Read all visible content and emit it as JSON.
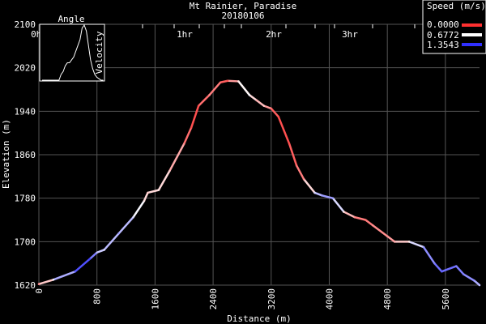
{
  "chart_data": {
    "type": "line",
    "title": "Mt Rainier, Paradise",
    "subtitle": "20180106",
    "xlabel": "Distance (m)",
    "ylabel": "Elevation (m)",
    "xlim": [
      0,
      6070
    ],
    "ylim": [
      1620,
      2100
    ],
    "xticks": [
      "0",
      "800",
      "1600",
      "2400",
      "3200",
      "4000",
      "4800",
      "5600"
    ],
    "yticks": [
      "1620",
      "1700",
      "1780",
      "1860",
      "1940",
      "2020",
      "2100"
    ],
    "time_ticks": [
      "0hr",
      "1hr",
      "2hr",
      "3hr"
    ],
    "legend": {
      "title": "Speed (m/s)",
      "placement": "top-right",
      "entries": [
        {
          "label": "0.0000",
          "color": "#ff3030"
        },
        {
          "label": "0.6772",
          "color": "#ffffff"
        },
        {
          "label": "1.3543",
          "color": "#3030ff"
        }
      ]
    },
    "inset": {
      "title": "Angle",
      "ylabel": "Velocity",
      "values": [
        0,
        0,
        0,
        0,
        0,
        0,
        0,
        0,
        0,
        2,
        3,
        5,
        6,
        6,
        7,
        8,
        10,
        12,
        14,
        18,
        19,
        17,
        12,
        7,
        4,
        2,
        1,
        0.5,
        0,
        0
      ]
    },
    "series": [
      {
        "name": "profile",
        "points": [
          [
            0,
            1622,
            0.3
          ],
          [
            200,
            1630,
            0.7
          ],
          [
            500,
            1645,
            1.2
          ],
          [
            700,
            1668,
            1.3
          ],
          [
            800,
            1680,
            0.9
          ],
          [
            900,
            1685,
            0.8
          ],
          [
            1100,
            1715,
            1.0
          ],
          [
            1300,
            1745,
            0.8
          ],
          [
            1450,
            1775,
            0.6
          ],
          [
            1500,
            1790,
            0.5
          ],
          [
            1650,
            1795,
            0.6
          ],
          [
            1800,
            1830,
            0.5
          ],
          [
            2000,
            1880,
            0.3
          ],
          [
            2100,
            1910,
            0.1
          ],
          [
            2200,
            1950,
            0.1
          ],
          [
            2350,
            1970,
            0.3
          ],
          [
            2500,
            1993,
            0.2
          ],
          [
            2600,
            1996,
            0.1
          ],
          [
            2750,
            1995,
            0.6
          ],
          [
            2900,
            1970,
            0.7
          ],
          [
            3000,
            1960,
            0.4
          ],
          [
            3100,
            1950,
            0.5
          ],
          [
            3200,
            1945,
            0.2
          ],
          [
            3300,
            1930,
            0.1
          ],
          [
            3450,
            1880,
            0.1
          ],
          [
            3550,
            1840,
            0.2
          ],
          [
            3650,
            1815,
            0.3
          ],
          [
            3800,
            1790,
            0.8
          ],
          [
            3900,
            1785,
            1.0
          ],
          [
            4050,
            1780,
            1.0
          ],
          [
            4200,
            1755,
            0.6
          ],
          [
            4350,
            1745,
            0.3
          ],
          [
            4500,
            1740,
            0.2
          ],
          [
            4600,
            1730,
            0.3
          ],
          [
            4800,
            1710,
            0.3
          ],
          [
            4900,
            1700,
            0.4
          ],
          [
            5100,
            1700,
            0.6
          ],
          [
            5300,
            1690,
            1.0
          ],
          [
            5450,
            1660,
            1.1
          ],
          [
            5550,
            1645,
            1.2
          ],
          [
            5750,
            1655,
            1.1
          ],
          [
            5850,
            1640,
            1.1
          ],
          [
            6000,
            1628,
            1.0
          ],
          [
            6070,
            1620,
            0.9
          ]
        ]
      }
    ]
  }
}
